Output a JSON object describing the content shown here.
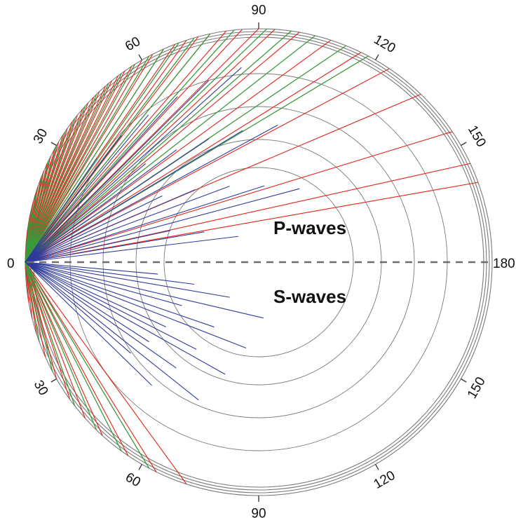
{
  "diagram": {
    "labels": {
      "upper": "P-waves",
      "lower": "S-waves"
    },
    "axis": {
      "left_end": "0",
      "right_end": "180"
    },
    "upper_ticks": [
      {
        "angle": 30,
        "text": "30"
      },
      {
        "angle": 60,
        "text": "60"
      },
      {
        "angle": 90,
        "text": "90"
      },
      {
        "angle": 120,
        "text": "120"
      },
      {
        "angle": 150,
        "text": "150"
      }
    ],
    "lower_ticks": [
      {
        "angle": 30,
        "text": "30"
      },
      {
        "angle": 60,
        "text": "60"
      },
      {
        "angle": 90,
        "text": "90"
      },
      {
        "angle": 120,
        "text": "120"
      },
      {
        "angle": 150,
        "text": "150"
      }
    ],
    "colors": {
      "ray_red": "#e2231a",
      "ray_green": "#3c9a3c",
      "ray_blue": "#2e3b9c",
      "ring": "#7a7a7a",
      "axis_dash": "#6e6e6e"
    },
    "ray_groups": {
      "red_upper_deg": [
        8,
        10,
        12,
        13,
        15,
        17,
        19,
        21,
        23,
        25,
        27,
        29,
        31,
        33,
        35,
        37,
        39,
        41,
        43,
        45,
        47,
        49,
        51,
        53,
        55,
        57,
        60,
        63,
        66,
        69,
        72,
        75,
        78,
        82,
        86,
        90,
        94,
        100,
        108,
        116,
        124,
        134,
        146,
        155,
        160
      ],
      "green_upper_deg": [
        11,
        14,
        18,
        22,
        26,
        30,
        34,
        38,
        42,
        46,
        50,
        54,
        58,
        62,
        66,
        70,
        74,
        78,
        84,
        92,
        98,
        104,
        112,
        118
      ],
      "red_lower_deg": [
        10,
        14,
        18,
        24,
        30,
        36,
        42,
        48,
        56,
        64,
        72
      ],
      "green_lower_deg": [
        20,
        28,
        38,
        46,
        54,
        62
      ],
      "blue_upper_deg": [
        125,
        128,
        131,
        134,
        137,
        140,
        143,
        146,
        149,
        152,
        155,
        158,
        161,
        164,
        167,
        170,
        173,
        176,
        179
      ],
      "blue_lower_deg": [
        181,
        183,
        185,
        188,
        190,
        193,
        195,
        198,
        200,
        202,
        205,
        207,
        210,
        212,
        215
      ]
    }
  }
}
